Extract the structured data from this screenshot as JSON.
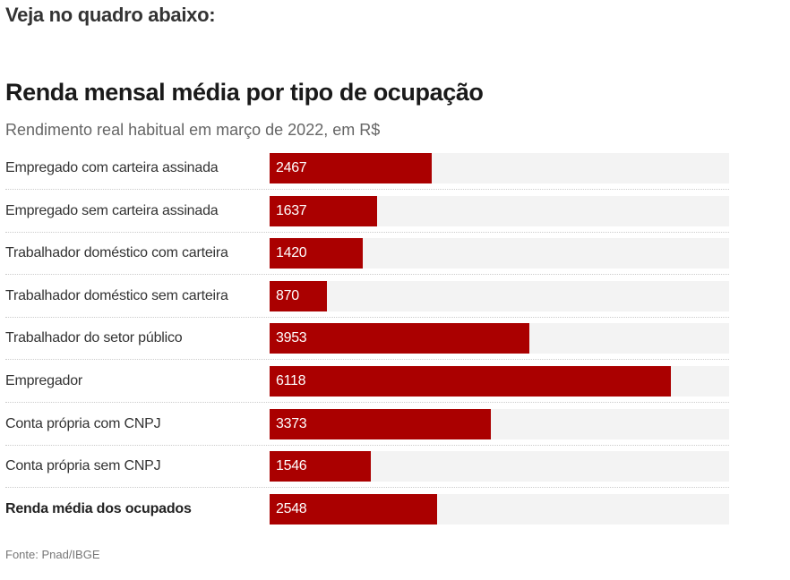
{
  "intro": "Veja no quadro abaixo:",
  "chart_data": {
    "type": "bar",
    "orientation": "horizontal",
    "title": "Renda mensal média por tipo de ocupação",
    "subtitle": "Rendimento real habitual em março de 2022, em R$",
    "xlim": [
      0,
      7000
    ],
    "categories": [
      "Empregado com carteira assinada",
      "Empregado sem carteira assinada",
      "Trabalhador doméstico com carteira",
      "Trabalhador doméstico sem carteira",
      "Trabalhador do setor público",
      "Empregador",
      "Conta própria com CNPJ",
      "Conta própria sem CNPJ",
      "Renda média dos ocupados"
    ],
    "values": [
      2467,
      1637,
      1420,
      870,
      3953,
      6118,
      3373,
      1546,
      2548
    ],
    "highlight_last_bold": true,
    "bar_color": "#aa0000",
    "track_color": "#f3f3f3",
    "source": "Fonte: Pnad/IBGE"
  }
}
